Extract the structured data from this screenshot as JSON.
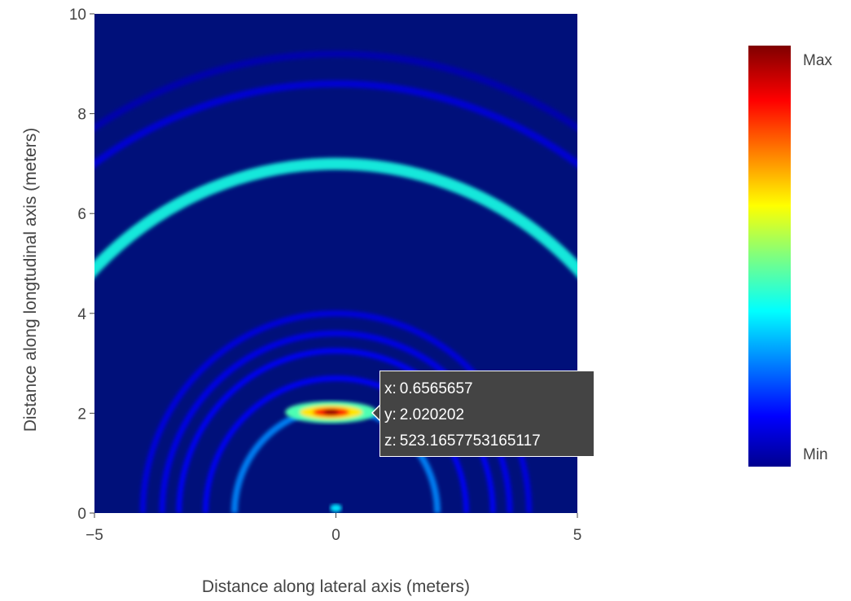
{
  "chart_data": {
    "type": "heatmap",
    "title": "",
    "xlabel": "Distance along lateral axis (meters)",
    "ylabel": "Distance along longtudinal axis (meters)",
    "xlim": [
      -5,
      5
    ],
    "ylim": [
      0,
      10
    ],
    "x_ticks": [
      "−5",
      "0",
      "5"
    ],
    "x_tick_values": [
      -5,
      0,
      5
    ],
    "y_ticks": [
      "0",
      "2",
      "4",
      "6",
      "8",
      "10"
    ],
    "y_tick_values": [
      0,
      2,
      4,
      6,
      8,
      10
    ],
    "colorscale": "jet",
    "colorbar": {
      "max_label": "Max",
      "min_label": "Min"
    },
    "background_color": "#00107a",
    "features": [
      {
        "shape": "arc",
        "center": [
          0,
          0
        ],
        "radius": 7.0,
        "intensity": 0.4,
        "width": 0.24
      },
      {
        "shape": "arc",
        "center": [
          0,
          0
        ],
        "radius": 8.6,
        "intensity": 0.09,
        "width": 0.14
      },
      {
        "shape": "arc",
        "center": [
          0,
          0
        ],
        "radius": 9.2,
        "intensity": 0.05,
        "width": 0.14
      },
      {
        "shape": "arc",
        "center": [
          0,
          0
        ],
        "radius": 4.0,
        "intensity": 0.1,
        "width": 0.12
      },
      {
        "shape": "arc",
        "center": [
          0,
          0
        ],
        "radius": 3.6,
        "intensity": 0.11,
        "width": 0.12
      },
      {
        "shape": "arc",
        "center": [
          0,
          0
        ],
        "radius": 3.25,
        "intensity": 0.13,
        "width": 0.11
      },
      {
        "shape": "arc",
        "center": [
          0,
          0
        ],
        "radius": 2.7,
        "intensity": 0.13,
        "width": 0.11
      },
      {
        "shape": "arc",
        "center": [
          0,
          0
        ],
        "radius": 2.1,
        "intensity": 0.26,
        "width": 0.13
      },
      {
        "shape": "hotspot",
        "x": -0.1,
        "y": 2.02,
        "intensity": 1.0
      },
      {
        "shape": "spot",
        "x": 0.0,
        "y": 0.1,
        "intensity": 0.35
      }
    ],
    "hover": {
      "x_key": "x:",
      "x": "0.6565657",
      "y_key": "y:",
      "y": "2.020202",
      "z_key": "z:",
      "z": "523.1657753165117"
    }
  }
}
